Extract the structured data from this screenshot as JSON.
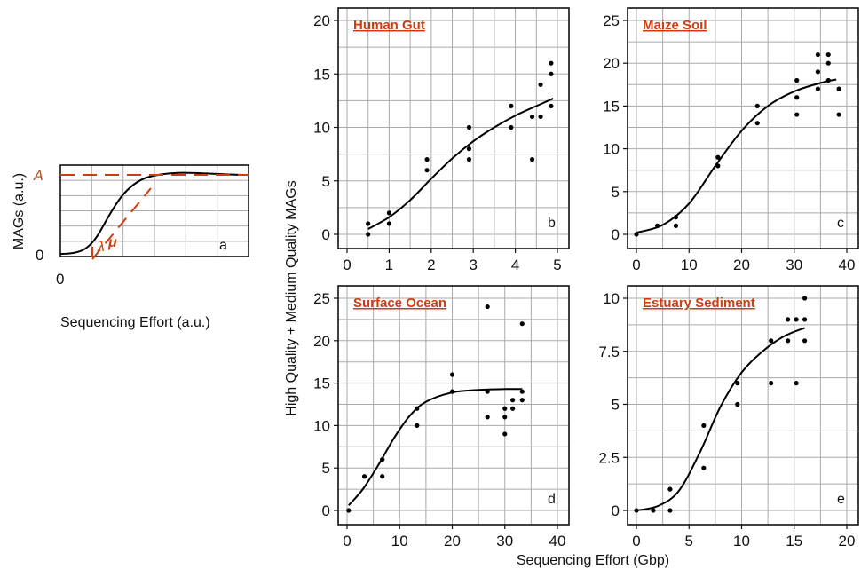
{
  "colors": {
    "accent": "#cc3d10",
    "curve": "#000000",
    "grid": "#aaaaaa"
  },
  "shared": {
    "xlabel": "Sequencing Effort (Gbp)",
    "ylabel": "High Quality + Medium Quality MAGs"
  },
  "schematic": {
    "letter": "a",
    "xlabel": "Sequencing Effort (a.u.)",
    "ylabel": "MAGs (a.u.)",
    "x_tick": "0",
    "y_tick": "0",
    "label_A": "A",
    "label_mu": "μ",
    "label_lambda": "λ"
  },
  "chart_data": [
    {
      "type": "scatter",
      "title": "Human Gut",
      "letter": "b",
      "xlim": [
        0,
        5
      ],
      "ylim": [
        0,
        20
      ],
      "xticks": [
        0,
        1,
        2,
        3,
        4,
        5
      ],
      "yticks": [
        0,
        5,
        10,
        15,
        20
      ],
      "points": [
        [
          0.5,
          0
        ],
        [
          0.5,
          1
        ],
        [
          1,
          1
        ],
        [
          1,
          2
        ],
        [
          1.9,
          6
        ],
        [
          1.9,
          7
        ],
        [
          2.9,
          7
        ],
        [
          2.9,
          8
        ],
        [
          2.9,
          10
        ],
        [
          3.9,
          10
        ],
        [
          3.9,
          12
        ],
        [
          4.4,
          7
        ],
        [
          4.4,
          11
        ],
        [
          4.6,
          11
        ],
        [
          4.6,
          14
        ],
        [
          4.85,
          12
        ],
        [
          4.85,
          15
        ],
        [
          4.85,
          16
        ]
      ],
      "fit": [
        [
          0.5,
          0.5
        ],
        [
          1,
          1.6
        ],
        [
          1.5,
          3.2
        ],
        [
          2,
          5.2
        ],
        [
          2.5,
          7.1
        ],
        [
          3,
          8.7
        ],
        [
          3.5,
          10.0
        ],
        [
          4,
          11.1
        ],
        [
          4.5,
          12.0
        ],
        [
          4.9,
          12.7
        ]
      ]
    },
    {
      "type": "scatter",
      "title": "Maize Soil",
      "letter": "c",
      "xlim": [
        0,
        40
      ],
      "ylim": [
        0,
        25
      ],
      "xticks": [
        0,
        10,
        20,
        30,
        40
      ],
      "yticks": [
        0,
        5,
        10,
        15,
        20,
        25
      ],
      "points": [
        [
          0,
          0
        ],
        [
          4,
          1
        ],
        [
          7.5,
          1
        ],
        [
          7.5,
          2
        ],
        [
          15.5,
          8
        ],
        [
          15.5,
          9
        ],
        [
          23,
          13
        ],
        [
          23,
          15
        ],
        [
          30.5,
          14
        ],
        [
          30.5,
          16
        ],
        [
          30.5,
          18
        ],
        [
          34.5,
          17
        ],
        [
          34.5,
          19
        ],
        [
          34.5,
          21
        ],
        [
          36.5,
          18
        ],
        [
          36.5,
          20
        ],
        [
          36.5,
          21
        ],
        [
          38.5,
          14
        ],
        [
          38.5,
          17
        ]
      ],
      "fit": [
        [
          0,
          0.2
        ],
        [
          5,
          1.1
        ],
        [
          10,
          3.6
        ],
        [
          15,
          8.0
        ],
        [
          20,
          12.1
        ],
        [
          25,
          15.0
        ],
        [
          30,
          16.7
        ],
        [
          35,
          17.7
        ],
        [
          38,
          18.1
        ]
      ]
    },
    {
      "type": "scatter",
      "title": "Surface Ocean",
      "letter": "d",
      "xlim": [
        0,
        40
      ],
      "ylim": [
        0,
        25
      ],
      "xticks": [
        0,
        10,
        20,
        30,
        40
      ],
      "yticks": [
        0,
        5,
        10,
        15,
        20,
        25
      ],
      "points": [
        [
          0.3,
          0
        ],
        [
          3.3,
          4
        ],
        [
          6.7,
          4
        ],
        [
          6.7,
          6
        ],
        [
          13.3,
          10
        ],
        [
          13.3,
          12
        ],
        [
          20,
          14
        ],
        [
          20,
          16
        ],
        [
          26.7,
          11
        ],
        [
          26.7,
          14
        ],
        [
          26.7,
          24
        ],
        [
          30,
          9
        ],
        [
          30,
          11
        ],
        [
          30,
          12
        ],
        [
          31.5,
          12
        ],
        [
          31.5,
          13
        ],
        [
          33.3,
          13
        ],
        [
          33.3,
          14
        ],
        [
          33.3,
          22
        ]
      ],
      "fit": [
        [
          0.3,
          0.6
        ],
        [
          3,
          2.5
        ],
        [
          6,
          5.4
        ],
        [
          9,
          8.6
        ],
        [
          12,
          11.2
        ],
        [
          15,
          12.8
        ],
        [
          20,
          13.9
        ],
        [
          25,
          14.2
        ],
        [
          30,
          14.3
        ],
        [
          33.3,
          14.3
        ]
      ]
    },
    {
      "type": "scatter",
      "title": "Estuary Sediment",
      "letter": "e",
      "xlim": [
        0,
        20
      ],
      "ylim": [
        0,
        10
      ],
      "xticks": [
        0,
        5,
        10,
        15,
        20
      ],
      "yticks": [
        0,
        2.5,
        5,
        7.5,
        10
      ],
      "points": [
        [
          0,
          0
        ],
        [
          1.6,
          0
        ],
        [
          3.2,
          0
        ],
        [
          3.2,
          1
        ],
        [
          6.4,
          2
        ],
        [
          6.4,
          4
        ],
        [
          9.6,
          5
        ],
        [
          9.6,
          6
        ],
        [
          12.8,
          6
        ],
        [
          12.8,
          8
        ],
        [
          14.4,
          8
        ],
        [
          14.4,
          9
        ],
        [
          15.2,
          6
        ],
        [
          15.2,
          9
        ],
        [
          16,
          8
        ],
        [
          16,
          9
        ],
        [
          16,
          10
        ]
      ],
      "fit": [
        [
          0,
          0
        ],
        [
          2,
          0.2
        ],
        [
          4,
          0.9
        ],
        [
          6,
          2.7
        ],
        [
          8,
          4.9
        ],
        [
          10,
          6.5
        ],
        [
          12,
          7.5
        ],
        [
          14,
          8.2
        ],
        [
          16,
          8.6
        ]
      ]
    }
  ]
}
